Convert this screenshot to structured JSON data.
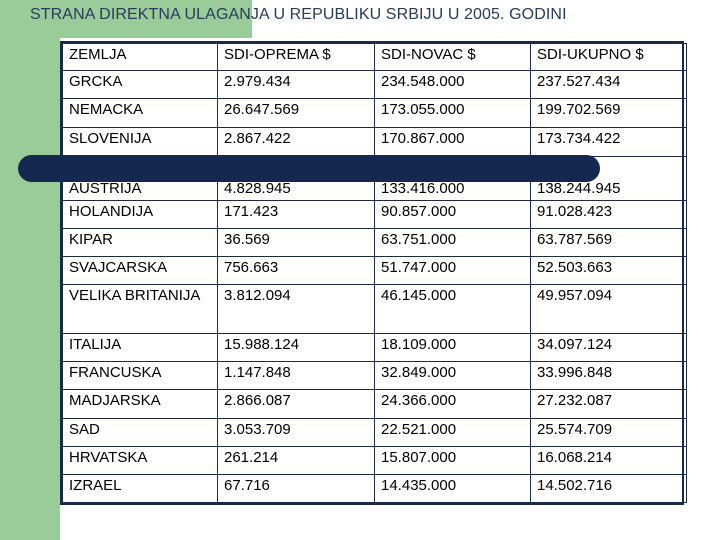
{
  "title": "STRANA DIREKTNA ULAGANJA U REPUBLIKU SRBIJU U 2005. GODINI",
  "colors": {
    "accent_green": "#99cc99",
    "title_color": "#2a3a5c",
    "border": "#1a2a4a",
    "bar": "#142850"
  },
  "table": {
    "headers": [
      "ZEMLJA",
      "SDI-OPREMA $",
      "SDI-NOVAC $",
      "SDI-UKUPNO $"
    ],
    "rows": [
      [
        "GRCKA",
        "2.979.434",
        "234.548.000",
        "237.527.434"
      ],
      [
        "NEMACKA",
        "26.647.569",
        "173.055.000",
        "199.702.569"
      ],
      [
        "SLOVENIJA",
        "2.867.422",
        "170.867.000",
        "173.734.422"
      ],
      [
        "AUSTRIJA",
        "4.828.945",
        "133.416.000",
        "138.244.945"
      ],
      [
        "HOLANDIJA",
        "171.423",
        "90.857.000",
        "91.028.423"
      ],
      [
        "KIPAR",
        "36.569",
        "63.751.000",
        "63.787.569"
      ],
      [
        "SVAJCARSKA",
        "756.663",
        "51.747.000",
        "52.503.663"
      ],
      [
        "VELIKA BRITANIJA",
        "3.812.094",
        "46.145.000",
        "49.957.094"
      ],
      [
        "ITALIJA",
        "15.988.124",
        "18.109.000",
        "34.097.124"
      ],
      [
        "FRANCUSKA",
        "1.147.848",
        "32.849.000",
        "33.996.848"
      ],
      [
        "MADJARSKA",
        "2.866.087",
        "24.366.000",
        "27.232.087"
      ],
      [
        "SAD",
        "3.053.709",
        "22.521.000",
        "25.574.709"
      ],
      [
        "HRVATSKA",
        "261.214",
        "15.807.000",
        "16.068.214"
      ],
      [
        "IZRAEL",
        "67.716",
        "14.435.000",
        "14.502.716"
      ]
    ]
  }
}
